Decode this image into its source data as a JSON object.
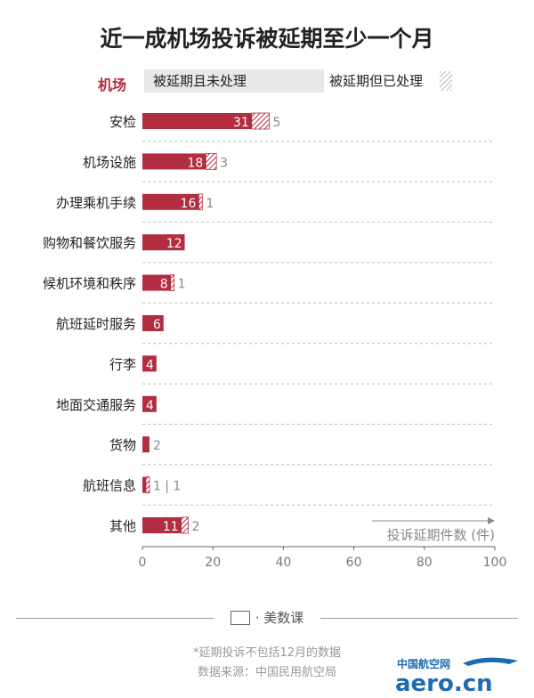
{
  "title": "近一成机场投诉被延期至少一个月",
  "legend": {
    "name": "机场",
    "unprocessed": "被延期且未处理",
    "processed": "被延期但已处理"
  },
  "colors": {
    "unprocessed": "#b22d40",
    "processed_hatch": "#b22d40",
    "legend_name": "#b22d40",
    "grid": "#bbbbbb"
  },
  "chart_data": {
    "type": "bar",
    "orientation": "horizontal",
    "stacked": true,
    "categories": [
      "安检",
      "机场设施",
      "办理乘机手续",
      "购物和餐饮服务",
      "候机环境和秩序",
      "航班延时服务",
      "行李",
      "地面交通服务",
      "货物",
      "航班信息",
      "其他"
    ],
    "series": [
      {
        "name": "被延期且未处理",
        "values": [
          31,
          18,
          16,
          12,
          8,
          6,
          4,
          4,
          2,
          1,
          11
        ]
      },
      {
        "name": "被延期但已处理",
        "values": [
          5,
          3,
          1,
          0,
          1,
          0,
          0,
          0,
          0,
          1,
          2
        ]
      }
    ],
    "xlabel": "投诉延期件数 (件)",
    "xlim": [
      0,
      100
    ],
    "xticks": [
      0,
      20,
      40,
      60,
      80,
      100
    ],
    "grid": true
  },
  "brand": {
    "text": "· 美数课"
  },
  "footnotes": {
    "note": "*延期投诉不包括12月的数据",
    "source": "数据来源：中国民用航空局"
  },
  "watermark": {
    "top": "中国航空网",
    "bottom": "aero.cn"
  }
}
